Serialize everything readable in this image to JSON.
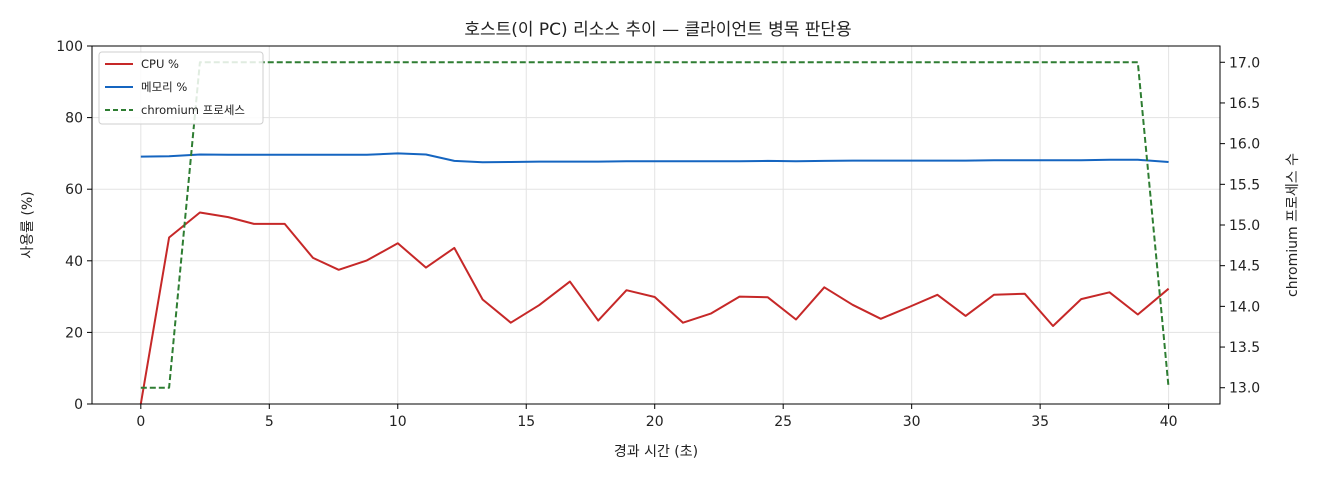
{
  "chart_data": {
    "type": "line",
    "title": "호스트(이 PC) 리소스 추이 — 클라이언트 병목 판단용",
    "xlabel": "경과 시간 (초)",
    "ylabel": "사용률 (%)",
    "y2label": "chromium 프로세스 수",
    "xlim": [
      -1.9,
      42
    ],
    "ylim": [
      0,
      100
    ],
    "y2lim": [
      12.8,
      17.2
    ],
    "xticks": [
      0,
      5,
      10,
      15,
      20,
      25,
      30,
      35,
      40
    ],
    "yticks": [
      0,
      20,
      40,
      60,
      80,
      100
    ],
    "y2ticks": [
      13.0,
      13.5,
      14.0,
      14.5,
      15.0,
      15.5,
      16.0,
      16.5,
      17.0
    ],
    "grid": true,
    "legend_position": "top-left",
    "series": [
      {
        "name": "CPU %",
        "axis": "left",
        "color": "#c62828",
        "style": "solid",
        "x": [
          0,
          1.1,
          2.3,
          3.4,
          4.4,
          5.6,
          6.7,
          7.7,
          8.8,
          10.0,
          11.1,
          12.2,
          13.3,
          14.4,
          15.5,
          16.7,
          17.8,
          18.9,
          20.0,
          21.1,
          22.2,
          23.3,
          24.4,
          25.5,
          26.6,
          27.7,
          28.8,
          29.9,
          31.0,
          32.1,
          33.2,
          34.4,
          35.5,
          36.6,
          37.7,
          38.8,
          40.0
        ],
        "values": [
          0,
          46.5,
          53.5,
          52.2,
          50.3,
          50.3,
          40.8,
          37.5,
          40.1,
          44.9,
          38.1,
          43.6,
          29.2,
          22.7,
          27.6,
          34.2,
          23.3,
          31.8,
          29.9,
          22.7,
          25.3,
          30.0,
          29.8,
          23.6,
          32.6,
          27.7,
          23.8,
          27.1,
          30.5,
          24.6,
          30.5,
          30.8,
          21.8,
          29.3,
          31.2,
          25.0,
          32.2
        ]
      },
      {
        "name": "메모리 %",
        "axis": "left",
        "color": "#1565c0",
        "style": "solid",
        "x": [
          0,
          1.1,
          2.3,
          3.4,
          4.4,
          5.6,
          6.7,
          7.7,
          8.8,
          10.0,
          11.1,
          12.2,
          13.3,
          14.4,
          15.5,
          16.7,
          17.8,
          18.9,
          20.0,
          21.1,
          22.2,
          23.3,
          24.4,
          25.5,
          26.6,
          27.7,
          28.8,
          29.9,
          31.0,
          32.1,
          33.2,
          34.4,
          35.5,
          36.6,
          37.7,
          38.8,
          40.0
        ],
        "values": [
          69.1,
          69.2,
          69.7,
          69.6,
          69.6,
          69.6,
          69.6,
          69.6,
          69.6,
          70.0,
          69.7,
          67.9,
          67.5,
          67.6,
          67.7,
          67.7,
          67.7,
          67.8,
          67.8,
          67.8,
          67.8,
          67.8,
          67.9,
          67.8,
          67.9,
          68.0,
          68.0,
          68.0,
          68.0,
          68.0,
          68.1,
          68.1,
          68.1,
          68.1,
          68.2,
          68.2,
          67.6
        ]
      },
      {
        "name": "chromium 프로세스",
        "axis": "right",
        "color": "#2e7d32",
        "style": "dashed",
        "x": [
          0,
          1.1,
          2.3,
          38.8,
          40.0
        ],
        "values": [
          13,
          13,
          17,
          17,
          13
        ]
      }
    ]
  }
}
